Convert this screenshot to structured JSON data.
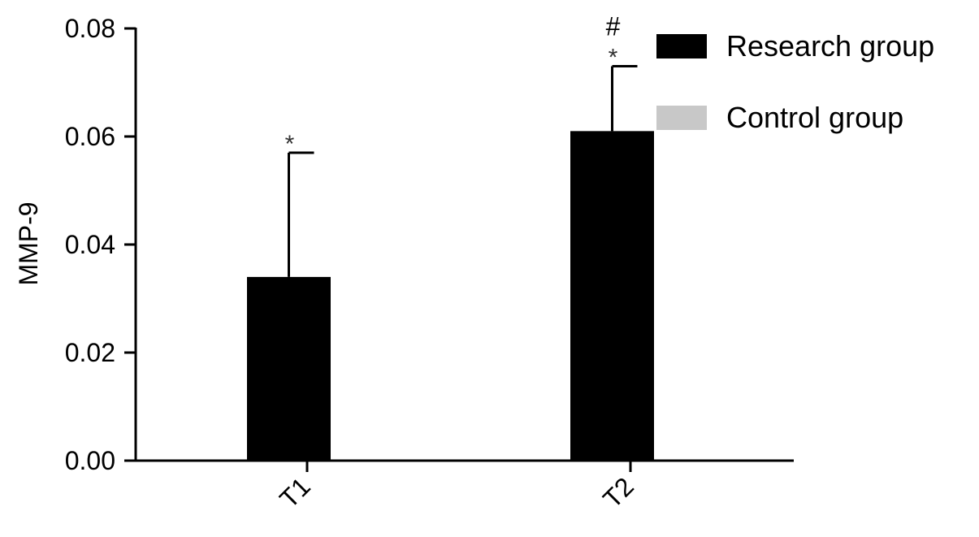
{
  "chart_data": {
    "type": "bar",
    "title": "",
    "xlabel": "",
    "ylabel": "MMP-9",
    "categories": [
      "T1",
      "T2"
    ],
    "ylim": [
      0,
      0.08
    ],
    "yticks": [
      "0.00",
      "0.02",
      "0.04",
      "0.06",
      "0.08"
    ],
    "yticks_values": [
      0,
      0.02,
      0.04,
      0.06,
      0.08
    ],
    "grid": false,
    "legend_position": "top-right",
    "series": [
      {
        "name": "Research group",
        "color": "#000000",
        "values": [
          0.034,
          0.061
        ],
        "errors": [
          0.023,
          0.012
        ]
      },
      {
        "name": "Control group",
        "color": "#c8c8c8",
        "values": [
          0,
          0
        ],
        "errors": [
          0,
          0
        ]
      }
    ],
    "annotations": [
      {
        "category": "T1",
        "series": "Research group",
        "text": "*"
      },
      {
        "category": "T2",
        "series": "Research group",
        "text": "*"
      },
      {
        "category": "T2",
        "series": "Research group",
        "text": "#"
      }
    ]
  }
}
